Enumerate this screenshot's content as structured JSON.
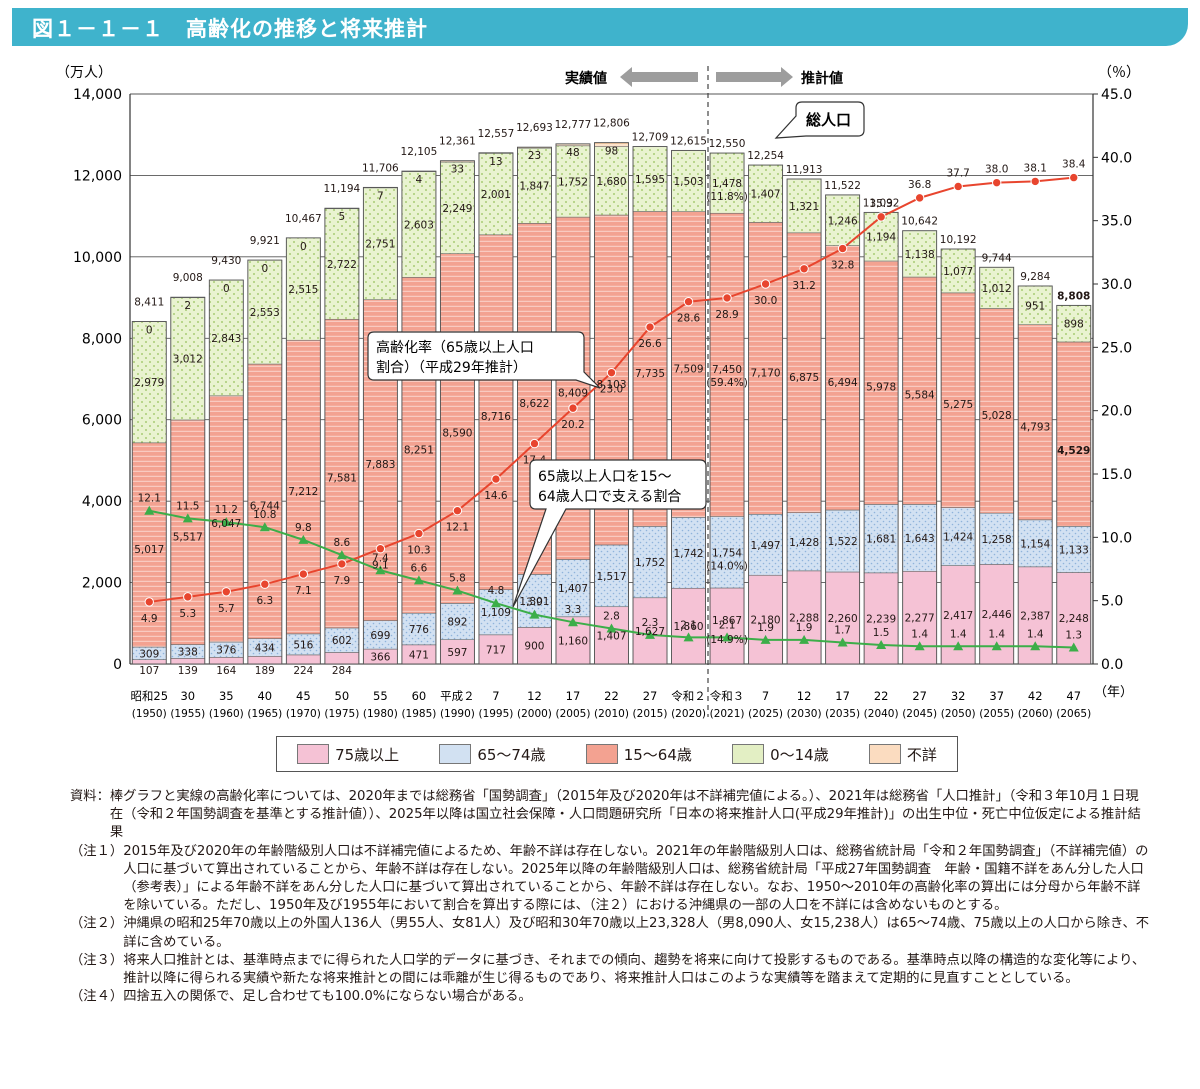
{
  "figure_title": "図１－１－１　高齢化の推移と将来推計",
  "left_unit": "（万人）",
  "right_unit": "（％）",
  "x_unit": "（年）",
  "actual_label": "実績値",
  "projection_label": "推計値",
  "total_label": "総人口",
  "aging_rate_label_line1": "高齢化率（65歳以上人口",
  "aging_rate_label_line2": "割合）（平成29年推計）",
  "support_label_line1": "65歳以上人口を15～",
  "support_label_line2": "64歳人口で支える割合",
  "chart_data": {
    "type": "bar",
    "subtype": "stacked bar with two line series on secondary axis",
    "categories": [
      [
        "昭和25",
        "(1950)"
      ],
      [
        "30",
        "(1955)"
      ],
      [
        "35",
        "(1960)"
      ],
      [
        "40",
        "(1965)"
      ],
      [
        "45",
        "(1970)"
      ],
      [
        "50",
        "(1975)"
      ],
      [
        "55",
        "(1980)"
      ],
      [
        "60",
        "(1985)"
      ],
      [
        "平成２",
        "(1990)"
      ],
      [
        "7",
        "(1995)"
      ],
      [
        "12",
        "(2000)"
      ],
      [
        "17",
        "(2005)"
      ],
      [
        "22",
        "(2010)"
      ],
      [
        "27",
        "(2015)"
      ],
      [
        "令和２",
        "(2020)"
      ],
      [
        "令和３",
        "(2021)"
      ],
      [
        "7",
        "(2025)"
      ],
      [
        "12",
        "(2030)"
      ],
      [
        "17",
        "(2035)"
      ],
      [
        "22",
        "(2040)"
      ],
      [
        "27",
        "(2045)"
      ],
      [
        "32",
        "(2050)"
      ],
      [
        "37",
        "(2055)"
      ],
      [
        "42",
        "(2060)"
      ],
      [
        "47",
        "(2065)"
      ]
    ],
    "ylim": [
      0,
      14000
    ],
    "y_ticks": [
      "0",
      "2,000",
      "4,000",
      "6,000",
      "8,000",
      "10,000",
      "12,000",
      "14,000"
    ],
    "y2lim": [
      0,
      45
    ],
    "y2_ticks": [
      "0.0",
      "5.0",
      "10.0",
      "15.0",
      "20.0",
      "25.0",
      "30.0",
      "35.0",
      "40.0",
      "45.0"
    ],
    "totals": [
      "8,411",
      "9,008",
      "9,430",
      "9,921",
      "10,467",
      "11,194",
      "11,706",
      "12,105",
      "12,361",
      "12,557",
      "12,693",
      "12,777",
      "12,806",
      "12,709",
      "12,615",
      "12,550",
      "12,254",
      "11,913",
      "11,522",
      "11,092",
      "10,642",
      "10,192",
      "9,744",
      "9,284",
      "8,808"
    ],
    "series": [
      {
        "name": "75歳以上",
        "color": "#f5c2d5",
        "values": [
          107,
          139,
          164,
          189,
          224,
          284,
          366,
          471,
          597,
          717,
          900,
          1160,
          1407,
          1627,
          1860,
          1867,
          2180,
          2288,
          2260,
          2239,
          2277,
          2417,
          2446,
          2387,
          2248
        ],
        "labels": [
          "107",
          "139",
          "164",
          "189",
          "224",
          "284",
          "366",
          "471",
          "597",
          "717",
          "900",
          "1,160",
          "1,407",
          "1,627",
          "1,860",
          "1,867",
          "2,180",
          "2,288",
          "2,260",
          "2,239",
          "2,277",
          "2,417",
          "2,446",
          "2,387",
          "2,248"
        ],
        "sub_labels": {
          "15": "(14.9%)"
        }
      },
      {
        "name": "65～74歳",
        "color": "#d2e1f2",
        "values": [
          309,
          338,
          376,
          434,
          516,
          602,
          699,
          776,
          892,
          1109,
          1301,
          1407,
          1517,
          1752,
          1742,
          1754,
          1497,
          1428,
          1522,
          1681,
          1643,
          1424,
          1258,
          1154,
          1133
        ],
        "labels": [
          "309",
          "338",
          "376",
          "434",
          "516",
          "602",
          "699",
          "776",
          "892",
          "1,109",
          "1,301",
          "1,407",
          "1,517",
          "1,752",
          "1,742",
          "1,754",
          "1,497",
          "1,428",
          "1,522",
          "1,681",
          "1,643",
          "1,424",
          "1,258",
          "1,154",
          "1,133"
        ],
        "sub_labels": {
          "15": "(14.0%)"
        }
      },
      {
        "name": "15～64歳",
        "color": "#f3a291",
        "values": [
          5017,
          5517,
          6047,
          6744,
          7212,
          7581,
          7883,
          8251,
          8590,
          8716,
          8622,
          8409,
          8103,
          7735,
          7509,
          7450,
          7170,
          6875,
          6494,
          5978,
          5584,
          5275,
          5028,
          4793,
          4529
        ],
        "labels": [
          "5,017",
          "5,517",
          "6,047",
          "6,744",
          "7,212",
          "7,581",
          "7,883",
          "8,251",
          "8,590",
          "8,716",
          "8,622",
          "8,409",
          "8,103",
          "7,735",
          "7,509",
          "7,450",
          "7,170",
          "6,875",
          "6,494",
          "5,978",
          "5,584",
          "5,275",
          "5,028",
          "4,793",
          "4,529"
        ],
        "sub_labels": {
          "15": "(59.4%)"
        }
      },
      {
        "name": "0～14歳",
        "color": "#e3efc4",
        "values": [
          2979,
          3012,
          2843,
          2553,
          2515,
          2722,
          2751,
          2603,
          2249,
          2001,
          1847,
          1752,
          1680,
          1595,
          1503,
          1478,
          1407,
          1321,
          1246,
          1194,
          1138,
          1077,
          1012,
          951,
          898
        ],
        "labels": [
          "2,979",
          "3,012",
          "2,843",
          "2,553",
          "2,515",
          "2,722",
          "2,751",
          "2,603",
          "2,249",
          "2,001",
          "1,847",
          "1,752",
          "1,680",
          "1,595",
          "1,503",
          "1,478",
          "1,407",
          "1,321",
          "1,246",
          "1,194",
          "1,138",
          "1,077",
          "1,012",
          "951",
          "898"
        ],
        "sub_labels": {
          "15": "(11.8%)"
        }
      },
      {
        "name": "不詳",
        "color": "#fbdcc0",
        "values": [
          0,
          2,
          0,
          0,
          0,
          5,
          7,
          4,
          33,
          13,
          23,
          48,
          98,
          0,
          0,
          0,
          0,
          0,
          0,
          0,
          0,
          0,
          0,
          0,
          0
        ],
        "labels": [
          "0",
          "2",
          "0",
          "0",
          "0",
          "5",
          "7",
          "4",
          "33",
          "13",
          "23",
          "48",
          "98",
          "",
          "",
          "",
          "",
          "",
          "",
          "",
          "",
          "",
          "",
          "",
          ""
        ]
      }
    ],
    "line_series": [
      {
        "name": "高齢化率（65歳以上人口割合）（平成29年推計）",
        "axis": "right",
        "color": "#e8452e",
        "marker": "circle",
        "values": [
          4.9,
          5.3,
          5.7,
          6.3,
          7.1,
          7.9,
          9.1,
          10.3,
          12.1,
          14.6,
          17.4,
          20.2,
          23.0,
          26.6,
          28.6,
          28.9,
          30.0,
          31.2,
          32.8,
          35.3,
          36.8,
          37.7,
          38.0,
          38.1,
          38.4
        ],
        "labels": [
          "4.9",
          "5.3",
          "5.7",
          "6.3",
          "7.1",
          "7.9",
          "9.1",
          "10.3",
          "12.1",
          "14.6",
          "17.4",
          "20.2",
          "23.0",
          "26.6",
          "28.6",
          "28.9",
          "30.0",
          "31.2",
          "32.8",
          "35.3",
          "36.8",
          "37.7",
          "38.0",
          "38.1",
          "38.4"
        ]
      },
      {
        "name": "65歳以上人口を15～64歳人口で支える割合",
        "axis": "right",
        "color": "#3cae49",
        "marker": "triangle",
        "values": [
          12.1,
          11.5,
          11.2,
          10.8,
          9.8,
          8.6,
          7.4,
          6.6,
          5.8,
          4.8,
          3.9,
          3.3,
          2.8,
          2.3,
          2.1,
          2.1,
          1.9,
          1.9,
          1.7,
          1.5,
          1.4,
          1.4,
          1.4,
          1.4,
          1.3
        ],
        "labels": [
          "12.1",
          "11.5",
          "11.2",
          "10.8",
          "9.8",
          "8.6",
          "7.4",
          "6.6",
          "5.8",
          "4.8",
          "3.9",
          "3.3",
          "2.8",
          "2.3",
          "2.1",
          "2.1",
          "1.9",
          "1.9",
          "1.7",
          "1.5",
          "1.4",
          "1.4",
          "1.4",
          "1.4",
          "1.3"
        ]
      }
    ],
    "legend_position": "bottom"
  },
  "notes": [
    {
      "head": "資料：",
      "body": "棒グラフと実線の高齢化率については、2020年までは総務省「国勢調査」（2015年及び2020年は不詳補完値による。）、2021年は総務省「人口推計」（令和３年10月１日現在（令和２年国勢調査を基準とする推計値））、2025年以降は国立社会保障・人口問題研究所「日本の将来推計人口(平成29年推計)」の出生中位・死亡中位仮定による推計結果"
    },
    {
      "head": "（注１）",
      "body": "2015年及び2020年の年齢階級別人口は不詳補完値によるため、年齢不詳は存在しない。2021年の年齢階級別人口は、総務省統計局「令和２年国勢調査」（不詳補完値）の人口に基づいて算出されていることから、年齢不詳は存在しない。2025年以降の年齢階級別人口は、総務省統計局「平成27年国勢調査　年齢・国籍不詳をあん分した人口（参考表）」による年齢不詳をあん分した人口に基づいて算出されていることから、年齢不詳は存在しない。なお、1950～2010年の高齢化率の算出には分母から年齢不詳を除いている。ただし、1950年及び1955年において割合を算出する際には、（注２）における沖縄県の一部の人口を不詳には含めないものとする。"
    },
    {
      "head": "（注２）",
      "body": "沖縄県の昭和25年70歳以上の外国人136人（男55人、女81人）及び昭和30年70歳以上23,328人（男8,090人、女15,238人）は65～74歳、75歳以上の人口から除き、不詳に含めている。"
    },
    {
      "head": "（注３）",
      "body": "将来人口推計とは、基準時点までに得られた人口学的データに基づき、それまでの傾向、趨勢を将来に向けて投影するものである。基準時点以降の構造的な変化等により、推計以降に得られる実績や新たな将来推計との間には乖離が生じ得るものであり、将来推計人口はこのような実績等を踏まえて定期的に見直すこととしている。"
    },
    {
      "head": "（注４）",
      "body": "四捨五入の関係で、足し合わせても100.0%にならない場合がある。"
    }
  ]
}
